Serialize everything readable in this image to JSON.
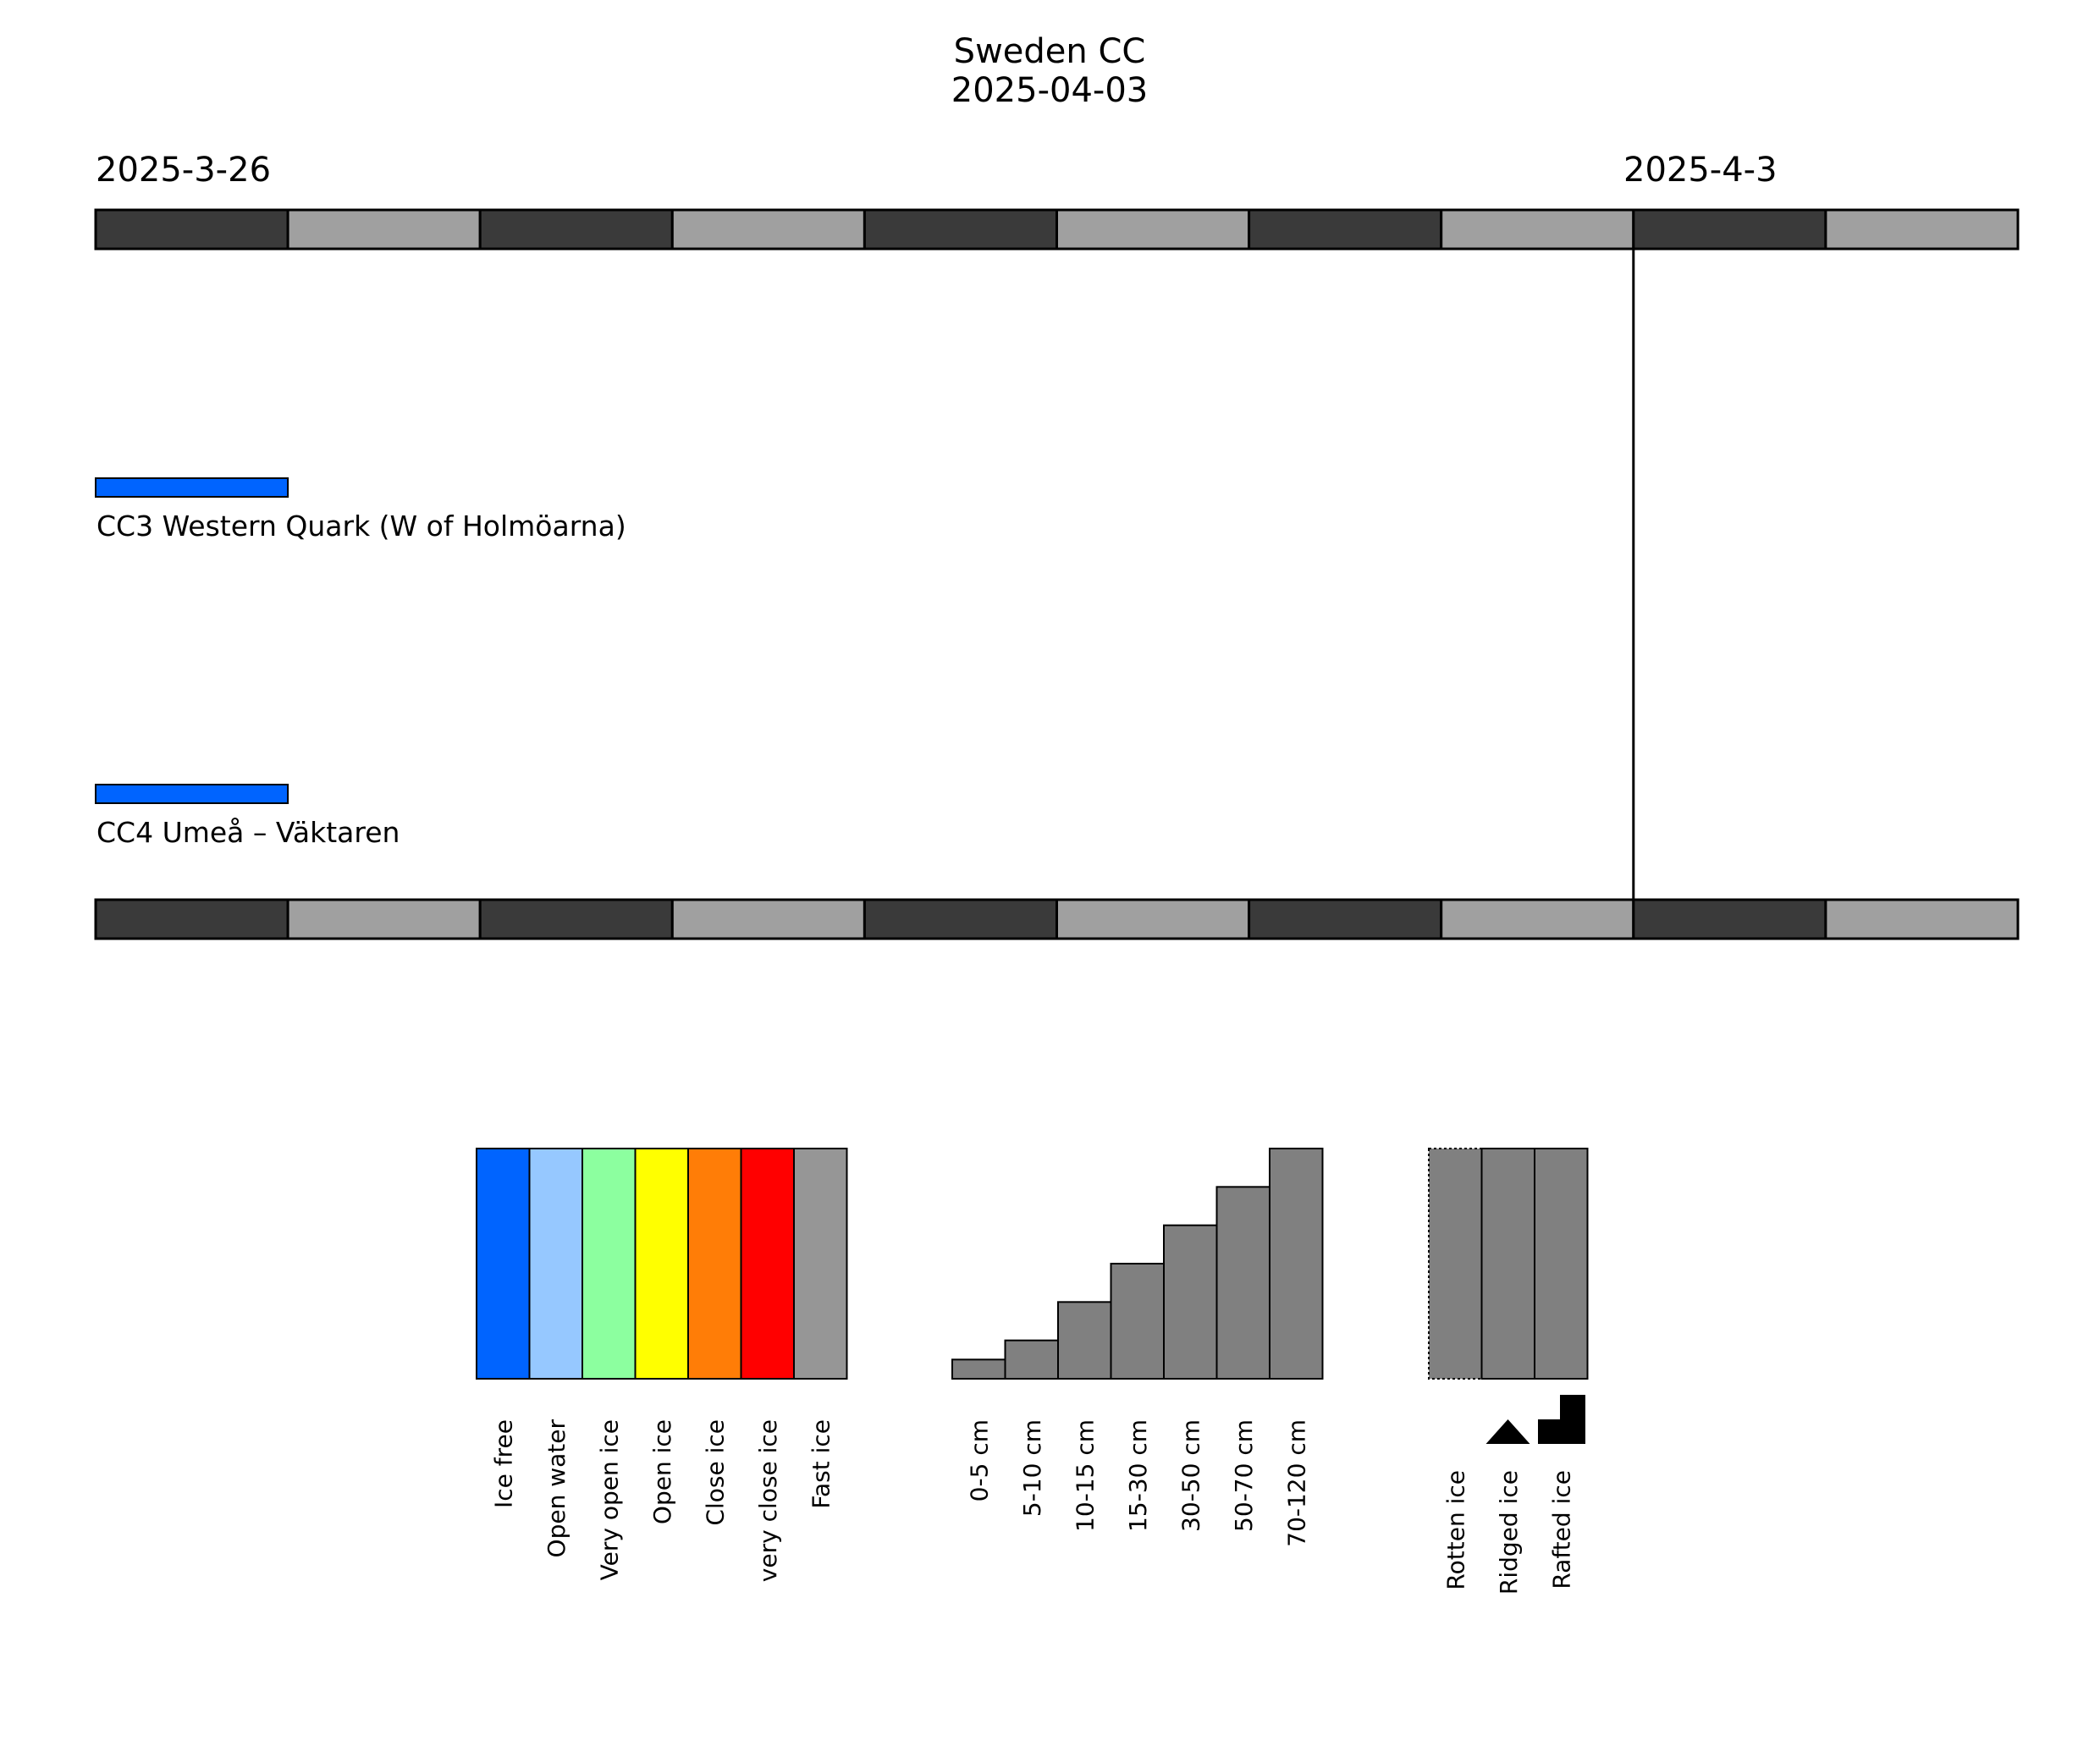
{
  "title": {
    "line1": "Sweden CC",
    "line2": "2025-04-03"
  },
  "timeline": {
    "start_label": "2025-3-26",
    "end_label": "2025-4-3",
    "days": 10,
    "current_day_index": 8,
    "day_colors": [
      "#3a3a3a",
      "#a0a0a0"
    ]
  },
  "chart_data": [
    {
      "type": "timeline",
      "x_start": "2025-03-26",
      "x_end": "2025-04-05",
      "marker_date": "2025-04-03",
      "series": [
        {
          "name": "CC3 Western Quark (W of Holmöarna)",
          "segments": [
            {
              "start": "2025-03-26",
              "end": "2025-03-27",
              "category": "Ice free",
              "color": "#0064ff"
            }
          ]
        },
        {
          "name": "CC4 Umeå – Väktaren",
          "segments": [
            {
              "start": "2025-03-26",
              "end": "2025-03-27",
              "category": "Ice free",
              "color": "#0064ff"
            }
          ]
        }
      ]
    },
    {
      "type": "bar",
      "title": "",
      "categories": [
        "Ice free",
        "Open water",
        "Very open ice",
        "Open ice",
        "Close ice",
        "very close ice",
        "Fast ice"
      ],
      "values": [
        1,
        1,
        1,
        1,
        1,
        1,
        1
      ],
      "colors": [
        "#0064ff",
        "#96c8ff",
        "#8cff9f",
        "#ffff00",
        "#ff7d07",
        "#ff0000",
        "#969696"
      ]
    },
    {
      "type": "bar",
      "title": "",
      "categories": [
        "0-5 cm",
        "5-10 cm",
        "10-15 cm",
        "15-30 cm",
        "30-50 cm",
        "50-70 cm",
        "70-120 cm"
      ],
      "values": [
        1,
        2,
        4,
        6,
        8,
        10,
        12
      ],
      "colors": [
        "#808080"
      ]
    },
    {
      "type": "bar",
      "title": "",
      "categories": [
        "Rotten ice",
        "Ridged ice",
        "Rafted ice"
      ],
      "values": [
        1,
        1,
        1
      ],
      "colors": [
        "#808080"
      ],
      "icons": [
        "none",
        "ridged-ice-icon",
        "rafted-ice-icon"
      ]
    }
  ]
}
